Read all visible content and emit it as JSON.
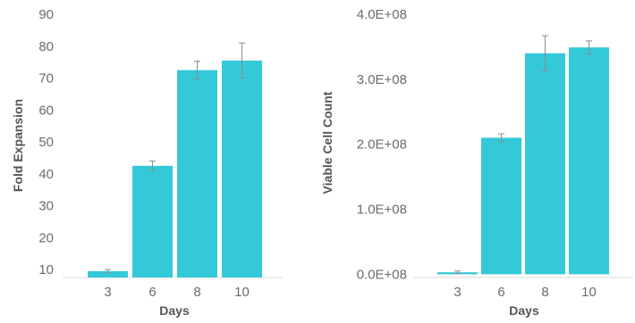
{
  "chart_data": [
    {
      "type": "bar",
      "title": "",
      "xlabel": "Days",
      "ylabel": "Fold Expansion",
      "categories": [
        "3",
        "6",
        "8",
        "10"
      ],
      "values": [
        9.5,
        42.5,
        72.5,
        75.5
      ],
      "error": [
        0.5,
        1.5,
        2.8,
        5.5
      ],
      "ylim": [
        7.5,
        90
      ],
      "yticks": [
        10,
        20,
        30,
        40,
        50,
        60,
        70,
        80,
        90
      ],
      "ytick_labels": [
        "10",
        "20",
        "30",
        "40",
        "50",
        "60",
        "70",
        "80",
        "90"
      ],
      "grid": false,
      "bar_color": "#33c9d8",
      "error_color": "#8c8c8c"
    },
    {
      "type": "bar",
      "title": "",
      "xlabel": "Days",
      "ylabel": "Viable Cell Count",
      "categories": [
        "3",
        "6",
        "8",
        "10"
      ],
      "values": [
        3000000,
        210000000,
        340000000,
        349000000
      ],
      "error": [
        2000000,
        6000000,
        27000000,
        10000000
      ],
      "ylim": [
        -5000000,
        400000000
      ],
      "yticks": [
        0,
        100000000,
        200000000,
        300000000,
        400000000
      ],
      "ytick_labels": [
        "0.0E+08",
        "1.0E+08",
        "2.0E+08",
        "3.0E+08",
        "4.0E+08"
      ],
      "grid": false,
      "bar_color": "#33c9d8",
      "error_color": "#8c8c8c"
    }
  ]
}
